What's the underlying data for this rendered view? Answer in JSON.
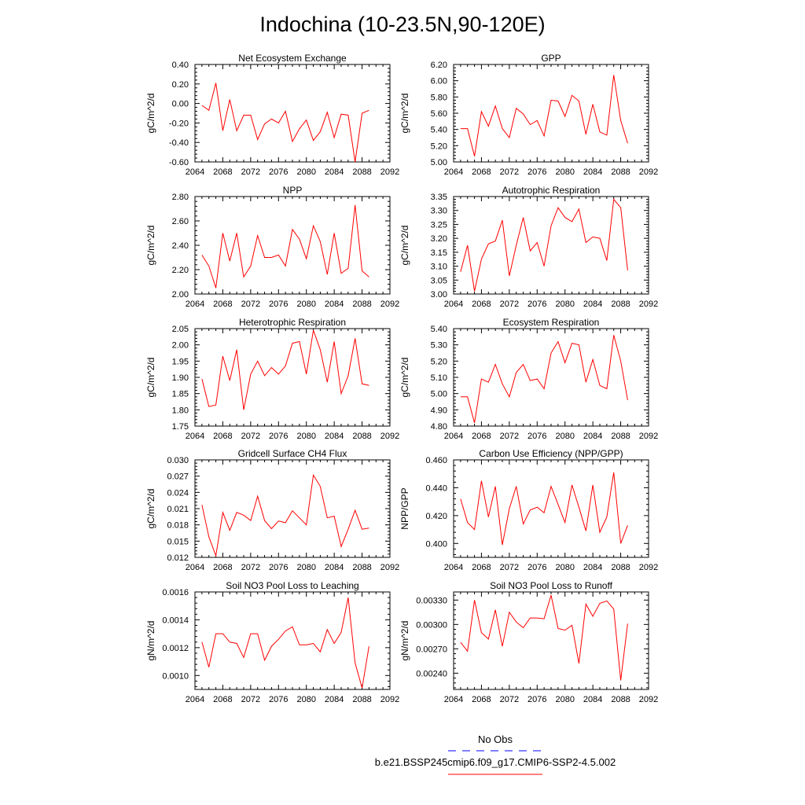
{
  "figure": {
    "title": "Indochina (10-23.5N,90-120E)",
    "legend": {
      "entries": [
        {
          "label": "No Obs",
          "color": "#0000ff",
          "dash": true
        },
        {
          "label": "b.e21.BSSP245cmip6.f09_g17.CMIP6-SSP2-4.5.002",
          "color": "#ff0000",
          "dash": false
        }
      ]
    }
  },
  "chart_data": [
    {
      "type": "line",
      "title": "Net Ecosystem Exchange",
      "ylabel": "gC/m^2/d",
      "xlim": [
        2064,
        2092
      ],
      "ylim": [
        -0.6,
        0.4
      ],
      "xticks": [
        2064,
        2068,
        2072,
        2076,
        2080,
        2084,
        2088,
        2092
      ],
      "xtick_labels": [
        "2064",
        "2068",
        "2072",
        "2076",
        "2080",
        "2084",
        "2088",
        "2092"
      ],
      "yticks": [
        -0.6,
        -0.4,
        -0.2,
        0.0,
        0.2,
        0.4
      ],
      "ytick_labels": [
        "-0.60",
        "-0.40",
        "-0.20",
        "0.00",
        "0.20",
        "0.40"
      ],
      "x": [
        2065,
        2066,
        2067,
        2068,
        2069,
        2070,
        2071,
        2072,
        2073,
        2074,
        2075,
        2076,
        2077,
        2078,
        2079,
        2080,
        2081,
        2082,
        2083,
        2084,
        2085,
        2086,
        2087,
        2088,
        2089
      ],
      "series": [
        {
          "color": "#ff0000",
          "values": [
            -0.02,
            -0.07,
            0.21,
            -0.28,
            0.04,
            -0.28,
            -0.12,
            -0.12,
            -0.37,
            -0.21,
            -0.16,
            -0.2,
            -0.08,
            -0.39,
            -0.26,
            -0.17,
            -0.38,
            -0.29,
            -0.09,
            -0.35,
            -0.11,
            -0.12,
            -0.6,
            -0.1,
            -0.07
          ]
        }
      ]
    },
    {
      "type": "line",
      "title": "GPP",
      "ylabel": "gC/m^2/d",
      "xlim": [
        2064,
        2092
      ],
      "ylim": [
        5.0,
        6.2
      ],
      "xticks": [
        2064,
        2068,
        2072,
        2076,
        2080,
        2084,
        2088,
        2092
      ],
      "xtick_labels": [
        "2064",
        "2068",
        "2072",
        "2076",
        "2080",
        "2084",
        "2088",
        "2092"
      ],
      "yticks": [
        5.0,
        5.2,
        5.4,
        5.6,
        5.8,
        6.0,
        6.2
      ],
      "ytick_labels": [
        "5.00",
        "5.20",
        "5.40",
        "5.60",
        "5.80",
        "6.00",
        "6.20"
      ],
      "x": [
        2065,
        2066,
        2067,
        2068,
        2069,
        2070,
        2071,
        2072,
        2073,
        2074,
        2075,
        2076,
        2077,
        2078,
        2079,
        2080,
        2081,
        2082,
        2083,
        2084,
        2085,
        2086,
        2087,
        2088,
        2089
      ],
      "series": [
        {
          "color": "#ff0000",
          "values": [
            5.41,
            5.41,
            5.07,
            5.62,
            5.44,
            5.69,
            5.41,
            5.3,
            5.66,
            5.59,
            5.46,
            5.51,
            5.32,
            5.76,
            5.75,
            5.56,
            5.82,
            5.75,
            5.34,
            5.71,
            5.37,
            5.33,
            6.07,
            5.51,
            5.23
          ]
        }
      ]
    },
    {
      "type": "line",
      "title": "NPP",
      "ylabel": "gC/m^2/d",
      "xlim": [
        2064,
        2092
      ],
      "ylim": [
        2.0,
        2.8
      ],
      "xticks": [
        2064,
        2068,
        2072,
        2076,
        2080,
        2084,
        2088,
        2092
      ],
      "xtick_labels": [
        "2064",
        "2068",
        "2072",
        "2076",
        "2080",
        "2084",
        "2088",
        "2092"
      ],
      "yticks": [
        2.0,
        2.2,
        2.4,
        2.6,
        2.8
      ],
      "ytick_labels": [
        "2.00",
        "2.20",
        "2.40",
        "2.60",
        "2.80"
      ],
      "x": [
        2065,
        2066,
        2067,
        2068,
        2069,
        2070,
        2071,
        2072,
        2073,
        2074,
        2075,
        2076,
        2077,
        2078,
        2079,
        2080,
        2081,
        2082,
        2083,
        2084,
        2085,
        2086,
        2087,
        2088,
        2089
      ],
      "series": [
        {
          "color": "#ff0000",
          "values": [
            2.32,
            2.23,
            2.05,
            2.5,
            2.27,
            2.5,
            2.14,
            2.23,
            2.48,
            2.3,
            2.3,
            2.32,
            2.23,
            2.53,
            2.45,
            2.29,
            2.56,
            2.43,
            2.16,
            2.5,
            2.17,
            2.21,
            2.73,
            2.19,
            2.14
          ]
        }
      ]
    },
    {
      "type": "line",
      "title": "Autotrophic Respiration",
      "ylabel": "gC/m^2/d",
      "xlim": [
        2064,
        2092
      ],
      "ylim": [
        3.0,
        3.35
      ],
      "xticks": [
        2064,
        2068,
        2072,
        2076,
        2080,
        2084,
        2088,
        2092
      ],
      "xtick_labels": [
        "2064",
        "2068",
        "2072",
        "2076",
        "2080",
        "2084",
        "2088",
        "2092"
      ],
      "yticks": [
        3.0,
        3.05,
        3.1,
        3.15,
        3.2,
        3.25,
        3.3,
        3.35
      ],
      "ytick_labels": [
        "3.00",
        "3.05",
        "3.10",
        "3.15",
        "3.20",
        "3.25",
        "3.30",
        "3.35"
      ],
      "x": [
        2065,
        2066,
        2067,
        2068,
        2069,
        2070,
        2071,
        2072,
        2073,
        2074,
        2075,
        2076,
        2077,
        2078,
        2079,
        2080,
        2081,
        2082,
        2083,
        2084,
        2085,
        2086,
        2087,
        2088,
        2089
      ],
      "series": [
        {
          "color": "#ff0000",
          "values": [
            3.08,
            3.175,
            3.01,
            3.125,
            3.18,
            3.19,
            3.265,
            3.065,
            3.175,
            3.275,
            3.155,
            3.185,
            3.1,
            3.245,
            3.31,
            3.275,
            3.26,
            3.305,
            3.185,
            3.205,
            3.2,
            3.12,
            3.34,
            3.31,
            3.085
          ]
        }
      ]
    },
    {
      "type": "line",
      "title": "Heterotrophic Respiration",
      "ylabel": "gC/m^2/d",
      "xlim": [
        2064,
        2092
      ],
      "ylim": [
        1.75,
        2.05
      ],
      "xticks": [
        2064,
        2068,
        2072,
        2076,
        2080,
        2084,
        2088,
        2092
      ],
      "xtick_labels": [
        "2064",
        "2068",
        "2072",
        "2076",
        "2080",
        "2084",
        "2088",
        "2092"
      ],
      "yticks": [
        1.75,
        1.8,
        1.85,
        1.9,
        1.95,
        2.0,
        2.05
      ],
      "ytick_labels": [
        "1.75",
        "1.80",
        "1.85",
        "1.90",
        "1.95",
        "2.00",
        "2.05"
      ],
      "x": [
        2065,
        2066,
        2067,
        2068,
        2069,
        2070,
        2071,
        2072,
        2073,
        2074,
        2075,
        2076,
        2077,
        2078,
        2079,
        2080,
        2081,
        2082,
        2083,
        2084,
        2085,
        2086,
        2087,
        2088,
        2089
      ],
      "series": [
        {
          "color": "#ff0000",
          "values": [
            1.895,
            1.81,
            1.815,
            1.965,
            1.89,
            1.985,
            1.8,
            1.91,
            1.95,
            1.905,
            1.93,
            1.91,
            1.935,
            2.005,
            2.01,
            1.91,
            2.045,
            1.985,
            1.885,
            2.01,
            1.85,
            1.905,
            2.02,
            1.88,
            1.875
          ]
        }
      ]
    },
    {
      "type": "line",
      "title": "Ecosystem Respiration",
      "ylabel": "gC/m^2/d",
      "xlim": [
        2064,
        2092
      ],
      "ylim": [
        4.8,
        5.4
      ],
      "xticks": [
        2064,
        2068,
        2072,
        2076,
        2080,
        2084,
        2088,
        2092
      ],
      "xtick_labels": [
        "2064",
        "2068",
        "2072",
        "2076",
        "2080",
        "2084",
        "2088",
        "2092"
      ],
      "yticks": [
        4.8,
        4.9,
        5.0,
        5.1,
        5.2,
        5.3,
        5.4
      ],
      "ytick_labels": [
        "4.80",
        "4.90",
        "5.00",
        "5.10",
        "5.20",
        "5.30",
        "5.40"
      ],
      "x": [
        2065,
        2066,
        2067,
        2068,
        2069,
        2070,
        2071,
        2072,
        2073,
        2074,
        2075,
        2076,
        2077,
        2078,
        2079,
        2080,
        2081,
        2082,
        2083,
        2084,
        2085,
        2086,
        2087,
        2088,
        2089
      ],
      "series": [
        {
          "color": "#ff0000",
          "values": [
            4.98,
            4.98,
            4.82,
            5.09,
            5.07,
            5.18,
            5.06,
            4.98,
            5.13,
            5.18,
            5.08,
            5.09,
            5.03,
            5.25,
            5.32,
            5.19,
            5.31,
            5.3,
            5.07,
            5.21,
            5.05,
            5.03,
            5.36,
            5.2,
            4.96
          ]
        }
      ]
    },
    {
      "type": "line",
      "title": "Gridcell Surface CH4 Flux",
      "ylabel": "gC/m^2/d",
      "xlim": [
        2064,
        2092
      ],
      "ylim": [
        0.012,
        0.03
      ],
      "xticks": [
        2064,
        2068,
        2072,
        2076,
        2080,
        2084,
        2088,
        2092
      ],
      "xtick_labels": [
        "2064",
        "2068",
        "2072",
        "2076",
        "2080",
        "2084",
        "2088",
        "2092"
      ],
      "yticks": [
        0.012,
        0.015,
        0.018,
        0.021,
        0.024,
        0.027,
        0.03
      ],
      "ytick_labels": [
        "0.012",
        "0.015",
        "0.018",
        "0.021",
        "0.024",
        "0.027",
        "0.030"
      ],
      "x": [
        2065,
        2066,
        2067,
        2068,
        2069,
        2070,
        2071,
        2072,
        2073,
        2074,
        2075,
        2076,
        2077,
        2078,
        2079,
        2080,
        2081,
        2082,
        2083,
        2084,
        2085,
        2086,
        2087,
        2088,
        2089
      ],
      "series": [
        {
          "color": "#ff0000",
          "values": [
            0.0217,
            0.0158,
            0.0123,
            0.0203,
            0.017,
            0.0203,
            0.0198,
            0.0188,
            0.0233,
            0.0188,
            0.0173,
            0.0187,
            0.0184,
            0.0206,
            0.0193,
            0.018,
            0.0272,
            0.0251,
            0.0193,
            0.0196,
            0.014,
            0.0172,
            0.0207,
            0.0172,
            0.0174
          ]
        }
      ]
    },
    {
      "type": "line",
      "title": "Carbon Use Efficiency (NPP/GPP)",
      "ylabel": "NPP/GPP",
      "xlim": [
        2064,
        2092
      ],
      "ylim": [
        0.39,
        0.46
      ],
      "xticks": [
        2064,
        2068,
        2072,
        2076,
        2080,
        2084,
        2088,
        2092
      ],
      "xtick_labels": [
        "2064",
        "2068",
        "2072",
        "2076",
        "2080",
        "2084",
        "2088",
        "2092"
      ],
      "yticks": [
        0.4,
        0.42,
        0.44,
        0.46
      ],
      "ytick_labels": [
        "0.400",
        "0.420",
        "0.440",
        "0.460"
      ],
      "x": [
        2065,
        2066,
        2067,
        2068,
        2069,
        2070,
        2071,
        2072,
        2073,
        2074,
        2075,
        2076,
        2077,
        2078,
        2079,
        2080,
        2081,
        2082,
        2083,
        2084,
        2085,
        2086,
        2087,
        2088,
        2089
      ],
      "series": [
        {
          "color": "#ff0000",
          "values": [
            0.432,
            0.415,
            0.41,
            0.445,
            0.419,
            0.441,
            0.399,
            0.425,
            0.441,
            0.414,
            0.424,
            0.426,
            0.422,
            0.441,
            0.428,
            0.415,
            0.442,
            0.426,
            0.409,
            0.442,
            0.408,
            0.419,
            0.451,
            0.4,
            0.413
          ]
        }
      ]
    },
    {
      "type": "line",
      "title": "Soil NO3 Pool Loss to Leaching",
      "ylabel": "gN/m^2/d",
      "xlim": [
        2064,
        2092
      ],
      "ylim": [
        0.0009,
        0.0016
      ],
      "xticks": [
        2064,
        2068,
        2072,
        2076,
        2080,
        2084,
        2088,
        2092
      ],
      "xtick_labels": [
        "2064",
        "2068",
        "2072",
        "2076",
        "2080",
        "2084",
        "2088",
        "2092"
      ],
      "yticks": [
        0.001,
        0.0012,
        0.0014,
        0.0016
      ],
      "ytick_labels": [
        "0.0010",
        "0.0012",
        "0.0014",
        "0.0016"
      ],
      "x": [
        2065,
        2066,
        2067,
        2068,
        2069,
        2070,
        2071,
        2072,
        2073,
        2074,
        2075,
        2076,
        2077,
        2078,
        2079,
        2080,
        2081,
        2082,
        2083,
        2084,
        2085,
        2086,
        2087,
        2088,
        2089
      ],
      "series": [
        {
          "color": "#ff0000",
          "values": [
            0.00124,
            0.00106,
            0.0013,
            0.0013,
            0.00124,
            0.00123,
            0.00113,
            0.0013,
            0.0013,
            0.00111,
            0.00121,
            0.00126,
            0.00132,
            0.00135,
            0.00122,
            0.00122,
            0.00123,
            0.00117,
            0.00133,
            0.00123,
            0.00131,
            0.00156,
            0.00109,
            0.00091,
            0.00121
          ]
        }
      ]
    },
    {
      "type": "line",
      "title": "Soil NO3 Pool Loss to Runoff",
      "ylabel": "gN/m^2/d",
      "xlim": [
        2064,
        2092
      ],
      "ylim": [
        0.0022,
        0.0034
      ],
      "xticks": [
        2064,
        2068,
        2072,
        2076,
        2080,
        2084,
        2088,
        2092
      ],
      "xtick_labels": [
        "2064",
        "2068",
        "2072",
        "2076",
        "2080",
        "2084",
        "2088",
        "2092"
      ],
      "yticks": [
        0.0024,
        0.0027,
        0.003,
        0.0033
      ],
      "ytick_labels": [
        "0.00240",
        "0.00270",
        "0.00300",
        "0.00330"
      ],
      "x": [
        2065,
        2066,
        2067,
        2068,
        2069,
        2070,
        2071,
        2072,
        2073,
        2074,
        2075,
        2076,
        2077,
        2078,
        2079,
        2080,
        2081,
        2082,
        2083,
        2084,
        2085,
        2086,
        2087,
        2088,
        2089
      ],
      "series": [
        {
          "color": "#ff0000",
          "values": [
            0.00278,
            0.00267,
            0.0033,
            0.0029,
            0.00282,
            0.00318,
            0.00273,
            0.00315,
            0.00303,
            0.00296,
            0.00308,
            0.00308,
            0.00307,
            0.00336,
            0.00295,
            0.00293,
            0.00299,
            0.00252,
            0.00325,
            0.0031,
            0.00326,
            0.00329,
            0.00319,
            0.00231,
            0.00301
          ]
        }
      ]
    }
  ]
}
